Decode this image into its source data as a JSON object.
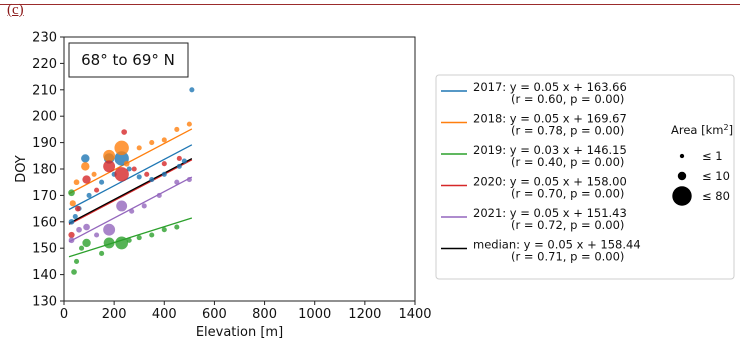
{
  "panel_label": "(c)",
  "chart_data": {
    "type": "scatter",
    "annotation": "68° to 69° N",
    "xlabel": "Elevation [m]",
    "ylabel": "DOY",
    "xlim": [
      0,
      1400
    ],
    "ylim": [
      130,
      230
    ],
    "xticks": [
      0,
      200,
      400,
      600,
      800,
      1000,
      1200,
      1400
    ],
    "yticks": [
      130,
      140,
      150,
      160,
      170,
      180,
      190,
      200,
      210,
      220,
      230
    ],
    "grid": false,
    "legend_placement": "right",
    "series": [
      {
        "name": "2017",
        "color": "#1f77b4",
        "slope": 0.05,
        "intercept": 163.66,
        "eq": "2017: y = 0.05 x + 163.66",
        "stats": "(r = 0.60, p = 0.00)",
        "points": [
          [
            30,
            160,
            3
          ],
          [
            45,
            162,
            2
          ],
          [
            60,
            165,
            2
          ],
          [
            85,
            184,
            10
          ],
          [
            100,
            170,
            2
          ],
          [
            150,
            175,
            2
          ],
          [
            180,
            184,
            18
          ],
          [
            200,
            178,
            2
          ],
          [
            230,
            184,
            40
          ],
          [
            260,
            180,
            2
          ],
          [
            300,
            177,
            2
          ],
          [
            350,
            176,
            2
          ],
          [
            400,
            178,
            2
          ],
          [
            460,
            181,
            2
          ],
          [
            480,
            183,
            2
          ],
          [
            510,
            210,
            2
          ]
        ]
      },
      {
        "name": "2018",
        "color": "#ff7f0e",
        "slope": 0.05,
        "intercept": 169.67,
        "eq": "2018: y = 0.05 x + 169.67",
        "stats": "(r = 0.78, p = 0.00)",
        "points": [
          [
            35,
            167,
            4
          ],
          [
            50,
            175,
            3
          ],
          [
            85,
            181,
            10
          ],
          [
            120,
            178,
            2
          ],
          [
            180,
            185,
            25
          ],
          [
            230,
            188,
            40
          ],
          [
            250,
            182,
            3
          ],
          [
            300,
            188,
            2
          ],
          [
            350,
            190,
            2
          ],
          [
            400,
            191,
            2
          ],
          [
            450,
            195,
            2
          ],
          [
            500,
            197,
            2
          ]
        ]
      },
      {
        "name": "2019",
        "color": "#2ca02c",
        "slope": 0.03,
        "intercept": 146.15,
        "eq": "2019: y = 0.03 x + 146.15",
        "stats": "(r = 0.40, p = 0.00)",
        "points": [
          [
            30,
            171,
            5
          ],
          [
            40,
            141,
            3
          ],
          [
            50,
            145,
            2
          ],
          [
            70,
            150,
            2
          ],
          [
            90,
            152,
            10
          ],
          [
            150,
            148,
            2
          ],
          [
            180,
            152,
            20
          ],
          [
            230,
            152,
            30
          ],
          [
            260,
            153,
            2
          ],
          [
            300,
            154,
            2
          ],
          [
            350,
            155,
            2
          ],
          [
            400,
            157,
            2
          ],
          [
            450,
            158,
            2
          ]
        ]
      },
      {
        "name": "2020",
        "color": "#d62728",
        "slope": 0.05,
        "intercept": 158.0,
        "eq": "2020: y = 0.05 x + 158.00",
        "stats": "(r = 0.70, p = 0.00)",
        "points": [
          [
            30,
            155,
            4
          ],
          [
            55,
            165,
            3
          ],
          [
            90,
            176,
            10
          ],
          [
            130,
            172,
            2
          ],
          [
            180,
            181,
            25
          ],
          [
            230,
            178,
            40
          ],
          [
            240,
            194,
            3
          ],
          [
            280,
            180,
            2
          ],
          [
            330,
            178,
            2
          ],
          [
            400,
            182,
            2
          ],
          [
            460,
            184,
            2
          ]
        ]
      },
      {
        "name": "2021",
        "color": "#9467bd",
        "slope": 0.05,
        "intercept": 151.43,
        "eq": "2021: y = 0.05 x + 151.43",
        "stats": "(r = 0.72, p = 0.00)",
        "points": [
          [
            30,
            153,
            3
          ],
          [
            60,
            157,
            3
          ],
          [
            90,
            158,
            5
          ],
          [
            130,
            155,
            2
          ],
          [
            180,
            157,
            25
          ],
          [
            230,
            166,
            20
          ],
          [
            270,
            164,
            2
          ],
          [
            320,
            166,
            2
          ],
          [
            380,
            170,
            2
          ],
          [
            450,
            175,
            2
          ],
          [
            500,
            176,
            2
          ]
        ]
      }
    ],
    "median": {
      "name": "median",
      "color": "#000000",
      "slope": 0.05,
      "intercept": 158.44,
      "eq": "median: y = 0.05 x + 158.44",
      "stats": "(r = 0.71, p = 0.00)"
    },
    "size_legend": {
      "title": "Area [km",
      "title_sup": "2",
      "title_end": "]",
      "items": [
        {
          "label": "≤ 1",
          "area": 1
        },
        {
          "label": "≤ 10",
          "area": 10
        },
        {
          "label": "≤ 80",
          "area": 80
        }
      ]
    }
  }
}
